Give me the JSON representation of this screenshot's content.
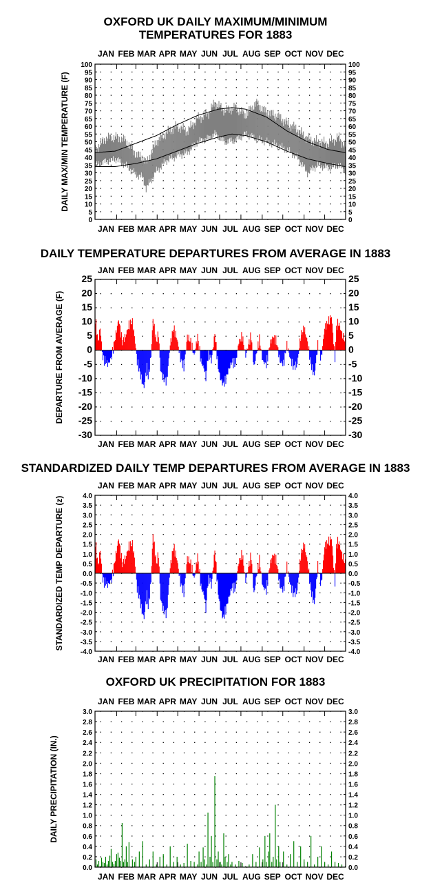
{
  "chart_data": [
    {
      "type": "line",
      "title": "OXFORD UK DAILY MAXIMUM/MINIMUM\nTEMPERATURES FOR 1883",
      "xlabel": "",
      "ylabel": "DAILY MAX/MIN TEMPERATURE (F)",
      "months": [
        "JAN",
        "FEB",
        "MAR",
        "APR",
        "MAY",
        "JUN",
        "JUL",
        "AUG",
        "SEP",
        "OCT",
        "NOV",
        "DEC"
      ],
      "ylim": [
        0,
        100
      ],
      "yticks": [
        0,
        5,
        10,
        15,
        20,
        25,
        30,
        35,
        40,
        45,
        50,
        55,
        60,
        65,
        70,
        75,
        80,
        85,
        90,
        95,
        100
      ],
      "grid": true,
      "series": [
        {
          "name": "",
          "color": "#808080",
          "note": "daily max/min band",
          "x": [
            1,
            15,
            30,
            45,
            60,
            70,
            75,
            90,
            105,
            120,
            135,
            150,
            165,
            175,
            190,
            205,
            220,
            235,
            250,
            265,
            280,
            295,
            310,
            325,
            340,
            355,
            365
          ],
          "max": [
            45,
            52,
            53,
            51,
            42,
            40,
            36,
            50,
            56,
            60,
            57,
            65,
            68,
            75,
            70,
            72,
            67,
            75,
            69,
            67,
            62,
            58,
            52,
            50,
            49,
            53,
            47
          ],
          "min": [
            35,
            37,
            39,
            35,
            29,
            27,
            20,
            31,
            38,
            41,
            43,
            50,
            52,
            55,
            50,
            51,
            55,
            52,
            50,
            48,
            45,
            40,
            30,
            35,
            33,
            35,
            31
          ]
        },
        {
          "name": "",
          "color": "#000000",
          "note": "normal high",
          "x": [
            1,
            30,
            60,
            90,
            120,
            150,
            180,
            200,
            220,
            250,
            280,
            310,
            340,
            365
          ],
          "y": [
            43,
            44,
            49,
            54,
            61,
            67,
            71,
            72,
            71,
            66,
            57,
            50,
            45,
            43
          ]
        },
        {
          "name": "",
          "color": "#000000",
          "note": "normal low",
          "x": [
            1,
            30,
            60,
            90,
            120,
            150,
            180,
            200,
            220,
            250,
            280,
            310,
            340,
            365
          ],
          "y": [
            34,
            34,
            36,
            39,
            44,
            49,
            53,
            55,
            54,
            50,
            44,
            39,
            36,
            34
          ]
        }
      ]
    },
    {
      "type": "bar",
      "title": "DAILY TEMPERATURE DEPARTURES FROM AVERAGE IN 1883",
      "ylabel": "DEPARTURE FROM AVERAGE (F)",
      "months": [
        "JAN",
        "FEB",
        "MAR",
        "APR",
        "MAY",
        "JUN",
        "JUL",
        "AUG",
        "SEP",
        "OCT",
        "NOV",
        "DEC"
      ],
      "ylim": [
        -30,
        25
      ],
      "yticks": [
        -30,
        -25,
        -20,
        -15,
        -10,
        -5,
        0,
        5,
        10,
        15,
        20,
        25
      ],
      "colors": {
        "positive": "#ff0000",
        "negative": "#0000ff"
      },
      "grid": true,
      "anchors": {
        "day": [
          1,
          5,
          8,
          12,
          20,
          25,
          35,
          40,
          45,
          50,
          55,
          58,
          62,
          65,
          68,
          70,
          72,
          74,
          76,
          78,
          82,
          85,
          90,
          93,
          96,
          100,
          105,
          110,
          115,
          120,
          125,
          130,
          135,
          140,
          145,
          150,
          155,
          160,
          162,
          165,
          168,
          170,
          175,
          180,
          183,
          187,
          190,
          195,
          200,
          205,
          210,
          215,
          220,
          225,
          228,
          232,
          235,
          240,
          245,
          250,
          255,
          260,
          265,
          270,
          275,
          280,
          285,
          290,
          295,
          300,
          305,
          310,
          315,
          320,
          325,
          330,
          335,
          340,
          345,
          350,
          352,
          355,
          360,
          365
        ],
        "value": [
          11,
          3,
          8,
          -3,
          -5,
          -2,
          11,
          3,
          5,
          9,
          10,
          5,
          -4,
          -7,
          -10,
          -12,
          -13,
          -9,
          -6,
          -10,
          -2,
          11,
          3,
          6,
          -7,
          -10,
          -11,
          2,
          8,
          4,
          -3,
          -6,
          5,
          3,
          -2,
          5,
          -4,
          -7,
          -10,
          -2,
          -2,
          -4,
          6,
          -6,
          -10,
          -12,
          -11,
          -7,
          -4,
          -5,
          3,
          5,
          -2,
          3,
          5,
          -6,
          -2,
          4,
          -4,
          -5,
          2,
          5,
          3,
          -4,
          -5,
          2,
          -3,
          -6,
          -5,
          5,
          8,
          3,
          -5,
          -9,
          2,
          -3,
          8,
          10,
          12,
          -3,
          8,
          10,
          6,
          3
        ]
      }
    },
    {
      "type": "bar",
      "title": "STANDARDIZED DAILY TEMP DEPARTURES FROM AVERAGE IN 1883",
      "ylabel": "STANDARDIZED TEMP DEPARTURE (z)",
      "months": [
        "JAN",
        "FEB",
        "MAR",
        "APR",
        "MAY",
        "JUN",
        "JUL",
        "AUG",
        "SEP",
        "OCT",
        "NOV",
        "DEC"
      ],
      "ylim": [
        -4.0,
        4.0
      ],
      "yticks": [
        "4.0",
        "3.5",
        "3.0",
        "2.5",
        "2.0",
        "1.5",
        "1.0",
        "0.5",
        "0.0",
        "-0.5",
        "-1.0",
        "-1.5",
        "-2.0",
        "-2.5",
        "-3.0",
        "-3.5",
        "-4.0"
      ],
      "colors": {
        "positive": "#ff0000",
        "negative": "#0000ff"
      },
      "grid": true,
      "anchors": {
        "day": [
          1,
          5,
          8,
          12,
          20,
          25,
          35,
          40,
          45,
          50,
          55,
          58,
          62,
          65,
          68,
          70,
          72,
          74,
          76,
          78,
          82,
          85,
          90,
          93,
          96,
          100,
          105,
          110,
          115,
          120,
          125,
          130,
          135,
          140,
          145,
          150,
          155,
          160,
          162,
          165,
          168,
          170,
          175,
          180,
          183,
          187,
          190,
          195,
          200,
          205,
          210,
          215,
          220,
          225,
          228,
          232,
          235,
          240,
          245,
          250,
          255,
          260,
          265,
          270,
          275,
          280,
          285,
          290,
          295,
          300,
          305,
          310,
          315,
          320,
          325,
          330,
          335,
          340,
          345,
          350,
          352,
          355,
          360,
          365
        ],
        "value": [
          1.6,
          0.4,
          1.2,
          -0.4,
          -0.6,
          -0.3,
          1.8,
          0.5,
          0.8,
          1.4,
          1.5,
          0.8,
          -0.8,
          -1.2,
          -1.8,
          -2.1,
          -2.3,
          -1.6,
          -1.1,
          -1.8,
          -0.4,
          2.0,
          0.5,
          1.0,
          -1.3,
          -1.9,
          -2.1,
          0.3,
          1.4,
          0.7,
          -0.5,
          -1.0,
          0.8,
          0.5,
          -0.3,
          0.9,
          -0.7,
          -1.2,
          -1.9,
          -0.4,
          -0.3,
          -0.7,
          1.2,
          -1.0,
          -1.8,
          -2.3,
          -2.0,
          -1.3,
          -0.7,
          -0.8,
          0.6,
          1.0,
          -0.4,
          0.5,
          0.9,
          -1.1,
          -0.3,
          0.7,
          -0.7,
          -0.9,
          0.4,
          1.0,
          0.6,
          -0.7,
          -0.9,
          0.4,
          -0.6,
          -1.1,
          -0.9,
          0.9,
          1.5,
          0.6,
          -0.9,
          -1.6,
          0.4,
          -0.6,
          1.4,
          1.6,
          1.8,
          -0.5,
          1.4,
          1.7,
          1.0,
          0.5
        ]
      }
    },
    {
      "type": "bar",
      "title": "OXFORD UK PRECIPITATION FOR 1883",
      "ylabel": "DAILY PRECIPITATION (IN.)",
      "months": [
        "JAN",
        "FEB",
        "MAR",
        "APR",
        "MAY",
        "JUN",
        "JUL",
        "AUG",
        "SEP",
        "OCT",
        "NOV",
        "DEC"
      ],
      "ylim": [
        0.0,
        3.0
      ],
      "yticks": [
        "3.0",
        "2.8",
        "2.6",
        "2.4",
        "2.2",
        "2.0",
        "1.8",
        "1.6",
        "1.4",
        "1.2",
        "1.0",
        "0.8",
        "0.6",
        "0.4",
        "0.2",
        "0.0"
      ],
      "color": "#008000",
      "grid": true,
      "days": [
        2,
        4,
        6,
        8,
        10,
        12,
        14,
        16,
        18,
        20,
        22,
        24,
        26,
        28,
        30,
        32,
        34,
        36,
        38,
        40,
        42,
        44,
        46,
        48,
        50,
        55,
        58,
        60,
        65,
        70,
        75,
        80,
        85,
        90,
        95,
        100,
        105,
        110,
        115,
        120,
        125,
        130,
        135,
        140,
        145,
        150,
        152,
        155,
        158,
        160,
        163,
        165,
        168,
        170,
        172,
        175,
        178,
        180,
        183,
        185,
        188,
        190,
        193,
        195,
        198,
        200,
        205,
        210,
        215,
        220,
        225,
        230,
        235,
        240,
        245,
        248,
        250,
        253,
        255,
        258,
        260,
        263,
        265,
        268,
        270,
        275,
        280,
        285,
        290,
        295,
        300,
        305,
        310,
        315,
        320,
        325,
        330,
        335,
        340,
        345,
        350,
        355,
        360,
        365
      ],
      "values": [
        0.15,
        0.05,
        0.12,
        0.02,
        0.18,
        0.1,
        0.08,
        0.2,
        0.05,
        0.12,
        0.22,
        0.35,
        0.1,
        0.06,
        0.12,
        0.25,
        0.28,
        0.18,
        0.12,
        0.85,
        0.1,
        0.15,
        0.4,
        0.1,
        0.48,
        0.15,
        0.1,
        0.2,
        0.3,
        0.5,
        0.05,
        0.15,
        0.3,
        0.05,
        0.2,
        0.25,
        0.05,
        0.4,
        0.1,
        0.2,
        0.05,
        0.08,
        0.45,
        0.12,
        0.1,
        0.05,
        0.3,
        0.1,
        0.38,
        0.15,
        0.05,
        1.05,
        0.2,
        0.6,
        0.1,
        1.75,
        0.15,
        0.3,
        0.1,
        0.05,
        0.65,
        0.2,
        0.1,
        0.25,
        0.05,
        0.1,
        0.05,
        0.12,
        0.08,
        0.02,
        0.05,
        0.25,
        0.1,
        0.38,
        0.15,
        0.6,
        0.1,
        0.3,
        0.65,
        0.1,
        0.2,
        1.2,
        0.15,
        0.4,
        0.1,
        0.3,
        0.05,
        0.25,
        0.5,
        0.1,
        0.4,
        0.15,
        0.1,
        0.6,
        0.05,
        0.2,
        0.4,
        0.1,
        0.05,
        0.3,
        0.1,
        0.08,
        0.05,
        0.02
      ]
    }
  ]
}
